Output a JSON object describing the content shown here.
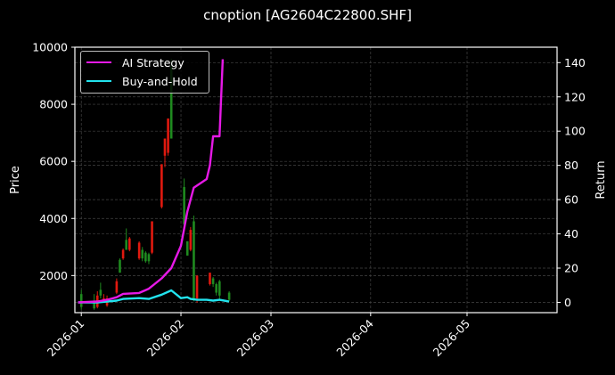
{
  "title": "cnoption [AG2604C22800.SHF]",
  "legend": {
    "items": [
      {
        "label": "AI Strategy",
        "color": "#e619e6"
      },
      {
        "label": "Buy-and-Hold",
        "color": "#22e3ee"
      }
    ]
  },
  "axes": {
    "left_label": "Price",
    "right_label": "Return",
    "left_ticks": [
      "2000",
      "4000",
      "6000",
      "8000",
      "10000"
    ],
    "right_ticks": [
      "0",
      "20",
      "40",
      "60",
      "80",
      "100",
      "120",
      "140"
    ],
    "x_ticks": [
      "2026-01",
      "2026-02",
      "2026-03",
      "2026-04",
      "2026-05"
    ]
  },
  "colors": {
    "background": "#000000",
    "up_candle": "#1f8a1f",
    "down_candle": "#e0190f",
    "grid": "#444444",
    "frame": "#ffffff"
  },
  "chart_data": {
    "type": "candlestick+line",
    "title": "cnoption [AG2604C22800.SHF]",
    "xlabel": "",
    "ylabel_left": "Price",
    "ylabel_right": "Return",
    "ylim_left": [
      700,
      10000
    ],
    "ylim_right": [
      -6,
      149
    ],
    "x_range": [
      "2025-12-30",
      "2026-05-29"
    ],
    "x_tick_labels": [
      "2026-01",
      "2026-02",
      "2026-03",
      "2026-04",
      "2026-05"
    ],
    "grid": true,
    "legend_position": "upper left",
    "candles": [
      {
        "date": "2026-01-01",
        "open": 900,
        "close": 1350,
        "low": 800,
        "high": 1500,
        "dir": "up"
      },
      {
        "date": "2026-01-05",
        "open": 850,
        "close": 1050,
        "low": 800,
        "high": 1350,
        "dir": "up"
      },
      {
        "date": "2026-01-06",
        "open": 1300,
        "close": 900,
        "low": 850,
        "high": 1450,
        "dir": "down"
      },
      {
        "date": "2026-01-07",
        "open": 1300,
        "close": 1500,
        "low": 1200,
        "high": 1750,
        "dir": "up"
      },
      {
        "date": "2026-01-08",
        "open": 1200,
        "close": 1100,
        "low": 1050,
        "high": 1350,
        "dir": "down"
      },
      {
        "date": "2026-01-09",
        "open": 1200,
        "close": 950,
        "low": 900,
        "high": 1300,
        "dir": "down"
      },
      {
        "date": "2026-01-12",
        "open": 1800,
        "close": 1400,
        "low": 1350,
        "high": 1900,
        "dir": "down"
      },
      {
        "date": "2026-01-13",
        "open": 2100,
        "close": 2550,
        "low": 2100,
        "high": 2600,
        "dir": "up"
      },
      {
        "date": "2026-01-14",
        "open": 2900,
        "close": 2600,
        "low": 2550,
        "high": 2950,
        "dir": "down"
      },
      {
        "date": "2026-01-15",
        "open": 2900,
        "close": 3250,
        "low": 2900,
        "high": 3650,
        "dir": "up"
      },
      {
        "date": "2026-01-16",
        "open": 3300,
        "close": 2900,
        "low": 2850,
        "high": 3350,
        "dir": "down"
      },
      {
        "date": "2026-01-19",
        "open": 3150,
        "close": 2600,
        "low": 2550,
        "high": 3200,
        "dir": "down"
      },
      {
        "date": "2026-01-20",
        "open": 2600,
        "close": 2900,
        "low": 2500,
        "high": 3000,
        "dir": "up"
      },
      {
        "date": "2026-01-21",
        "open": 2500,
        "close": 2800,
        "low": 2450,
        "high": 2850,
        "dir": "up"
      },
      {
        "date": "2026-01-22",
        "open": 2500,
        "close": 2750,
        "low": 2400,
        "high": 2800,
        "dir": "up"
      },
      {
        "date": "2026-01-23",
        "open": 3900,
        "close": 2800,
        "low": 2750,
        "high": 3900,
        "dir": "down"
      },
      {
        "date": "2026-01-26",
        "open": 5900,
        "close": 4400,
        "low": 4350,
        "high": 5900,
        "dir": "down"
      },
      {
        "date": "2026-01-27",
        "open": 6800,
        "close": 6200,
        "low": 5800,
        "high": 6800,
        "dir": "down"
      },
      {
        "date": "2026-01-28",
        "open": 7500,
        "close": 6300,
        "low": 6200,
        "high": 7500,
        "dir": "down"
      },
      {
        "date": "2026-01-29",
        "open": 6800,
        "close": 9300,
        "low": 6800,
        "high": 9600,
        "dir": "up"
      },
      {
        "date": "2026-02-02",
        "open": 3800,
        "close": 5100,
        "low": 3700,
        "high": 5400,
        "dir": "up"
      },
      {
        "date": "2026-02-03",
        "open": 2700,
        "close": 3200,
        "low": 2700,
        "high": 3200,
        "dir": "up"
      },
      {
        "date": "2026-02-04",
        "open": 3600,
        "close": 2900,
        "low": 2850,
        "high": 3700,
        "dir": "down"
      },
      {
        "date": "2026-02-05",
        "open": 1200,
        "close": 3900,
        "low": 1100,
        "high": 4100,
        "dir": "up"
      },
      {
        "date": "2026-02-06",
        "open": 2000,
        "close": 1200,
        "low": 1050,
        "high": 2000,
        "dir": "down"
      },
      {
        "date": "2026-02-10",
        "open": 2100,
        "close": 1700,
        "low": 1650,
        "high": 2100,
        "dir": "down"
      },
      {
        "date": "2026-02-11",
        "open": 1700,
        "close": 1900,
        "low": 1600,
        "high": 1950,
        "dir": "up"
      },
      {
        "date": "2026-02-12",
        "open": 1400,
        "close": 1700,
        "low": 1300,
        "high": 1750,
        "dir": "up"
      },
      {
        "date": "2026-02-13",
        "open": 1300,
        "close": 1800,
        "low": 1150,
        "high": 1850,
        "dir": "up"
      },
      {
        "date": "2026-02-16",
        "open": 1150,
        "close": 1400,
        "low": 1100,
        "high": 1450,
        "dir": "up"
      }
    ],
    "series": [
      {
        "name": "AI Strategy",
        "color": "#e619e6",
        "x": [
          "2025-12-31",
          "2026-01-06",
          "2026-01-09",
          "2026-01-12",
          "2026-01-14",
          "2026-01-19",
          "2026-01-22",
          "2026-01-26",
          "2026-01-29",
          "2026-02-01",
          "2026-02-03",
          "2026-02-05",
          "2026-02-09",
          "2026-02-10",
          "2026-02-11",
          "2026-02-13",
          "2026-02-14"
        ],
        "values": [
          0,
          0.5,
          1.5,
          3,
          5,
          5.5,
          8,
          14,
          20,
          33,
          53,
          67,
          72,
          80,
          97,
          97,
          142
        ]
      },
      {
        "name": "Buy-and-Hold",
        "color": "#22e3ee",
        "x": [
          "2025-12-31",
          "2026-01-06",
          "2026-01-09",
          "2026-01-12",
          "2026-01-14",
          "2026-01-19",
          "2026-01-22",
          "2026-01-26",
          "2026-01-29",
          "2026-02-01",
          "2026-02-03",
          "2026-02-04",
          "2026-02-06",
          "2026-02-09",
          "2026-02-11",
          "2026-02-13",
          "2026-02-16"
        ],
        "values": [
          0,
          0,
          0.5,
          1,
          2,
          2.5,
          2,
          4.5,
          7,
          2.5,
          3,
          2,
          1.5,
          1.5,
          1,
          1.5,
          0.5
        ]
      }
    ]
  }
}
